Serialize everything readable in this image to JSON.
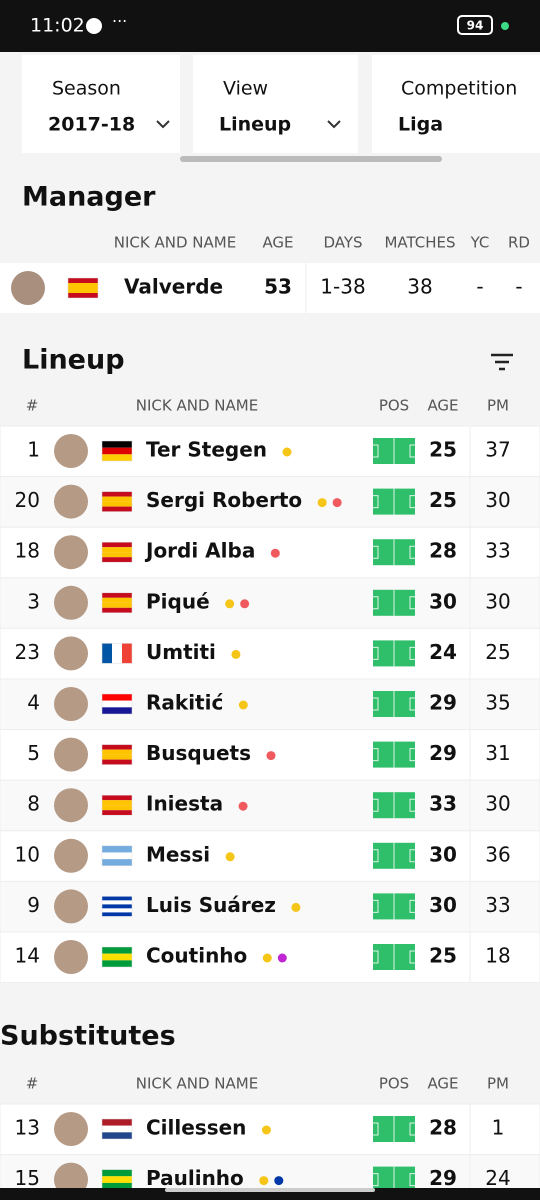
{
  "status_bar": {
    "time": "11:02",
    "battery": "94"
  },
  "filters": [
    {
      "label": "Season",
      "value": "2017-18"
    },
    {
      "label": "View",
      "value": "Lineup"
    },
    {
      "label": "Competition",
      "value": "Liga"
    }
  ],
  "manager": {
    "title": "Manager",
    "headers": [
      "NICK AND NAME",
      "AGE",
      "DAYS",
      "MATCHES",
      "YC",
      "RD"
    ],
    "row": {
      "name": "Valverde",
      "age": "53",
      "days": "1-38",
      "matches": "38",
      "yc": "-",
      "rd": "-",
      "flag": [
        "#c60b1e",
        "#ffc400",
        "#ffc400",
        "#c60b1e"
      ]
    }
  },
  "lineup": {
    "title": "Lineup",
    "headers": [
      "#",
      "NICK AND NAME",
      "POS",
      "AGE",
      "PM"
    ],
    "rows": [
      {
        "number": "1",
        "name": "Ter Stegen",
        "age": "25",
        "pm": "37",
        "flag": [
          "#000000",
          "#dd0000",
          "#ffce00"
        ],
        "cards": [
          "#f5c518"
        ]
      },
      {
        "number": "20",
        "name": "Sergi Roberto",
        "age": "25",
        "pm": "30",
        "flag": [
          "#c60b1e",
          "#ffc400",
          "#ffc400",
          "#c60b1e"
        ],
        "cards": [
          "#f5c518",
          "#f0595e"
        ]
      },
      {
        "number": "18",
        "name": "Jordi Alba",
        "age": "28",
        "pm": "33",
        "flag": [
          "#c60b1e",
          "#ffc400",
          "#ffc400",
          "#c60b1e"
        ],
        "cards": [
          "#f0595e"
        ]
      },
      {
        "number": "3",
        "name": "Piqué",
        "age": "30",
        "pm": "30",
        "flag": [
          "#c60b1e",
          "#ffc400",
          "#ffc400",
          "#c60b1e"
        ],
        "cards": [
          "#f5c518",
          "#f0595e"
        ]
      },
      {
        "number": "23",
        "name": "Umtiti",
        "age": "24",
        "pm": "25",
        "flag_v": [
          "#0055a4",
          "#ffffff",
          "#ef4135"
        ],
        "cards": [
          "#f5c518"
        ]
      },
      {
        "number": "4",
        "name": "Rakitić",
        "age": "29",
        "pm": "35",
        "flag": [
          "#ff0000",
          "#ffffff",
          "#171796"
        ],
        "cards": [
          "#f5c518"
        ]
      },
      {
        "number": "5",
        "name": "Busquets",
        "age": "29",
        "pm": "31",
        "flag": [
          "#c60b1e",
          "#ffc400",
          "#ffc400",
          "#c60b1e"
        ],
        "cards": [
          "#f0595e"
        ]
      },
      {
        "number": "8",
        "name": "Iniesta",
        "age": "33",
        "pm": "30",
        "flag": [
          "#c60b1e",
          "#ffc400",
          "#ffc400",
          "#c60b1e"
        ],
        "cards": [
          "#f0595e"
        ]
      },
      {
        "number": "10",
        "name": "Messi",
        "age": "30",
        "pm": "36",
        "flag": [
          "#74acdf",
          "#ffffff",
          "#74acdf"
        ],
        "cards": [
          "#f5c518"
        ]
      },
      {
        "number": "9",
        "name": "Luis Suárez",
        "age": "30",
        "pm": "33",
        "flag": [
          "#0038a8",
          "#ffffff",
          "#0038a8",
          "#ffffff",
          "#0038a8"
        ],
        "cards": [
          "#f5c518"
        ]
      },
      {
        "number": "14",
        "name": "Coutinho",
        "age": "25",
        "pm": "18",
        "flag": [
          "#009c3b",
          "#ffdf00",
          "#009c3b"
        ],
        "cards": [
          "#f5c518",
          "#c026d3"
        ]
      }
    ]
  },
  "substitutes": {
    "title": "Substitutes",
    "headers": [
      "#",
      "NICK AND NAME",
      "POS",
      "AGE",
      "PM"
    ],
    "rows": [
      {
        "number": "13",
        "name": "Cillessen",
        "age": "28",
        "pm": "1",
        "flag": [
          "#ae1c28",
          "#ffffff",
          "#21468b"
        ],
        "cards": [
          "#f5c518"
        ]
      },
      {
        "number": "15",
        "name": "Paulinho",
        "age": "29",
        "pm": "24",
        "flag": [
          "#009c3b",
          "#ffdf00",
          "#009c3b"
        ],
        "cards": [
          "#f5c518",
          "#0038a8"
        ]
      }
    ]
  }
}
